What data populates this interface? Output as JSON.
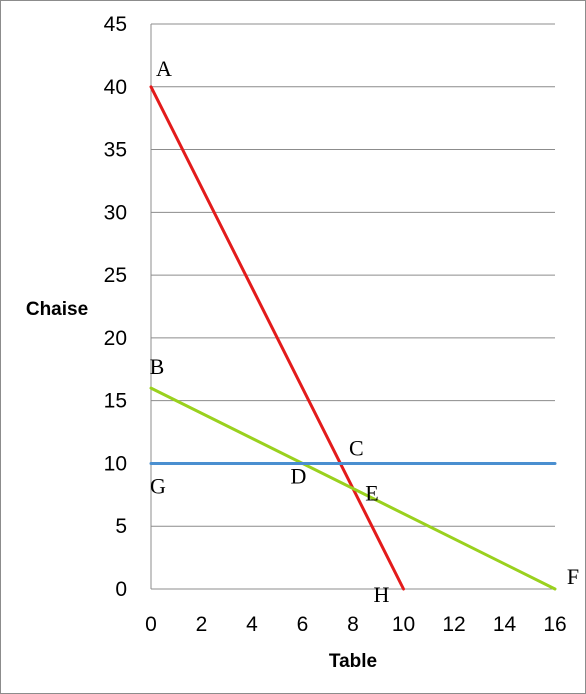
{
  "chart_data": {
    "type": "line",
    "title": "",
    "xlabel": "Table",
    "ylabel": "Chaise",
    "xlim": [
      0,
      16
    ],
    "ylim": [
      0,
      45
    ],
    "x_ticks": [
      "0",
      "2",
      "4",
      "6",
      "8",
      "10",
      "12",
      "14",
      "16"
    ],
    "y_ticks": [
      "0",
      "5",
      "10",
      "15",
      "20",
      "25",
      "30",
      "35",
      "40",
      "45"
    ],
    "grid": "horizontal",
    "legend": "none",
    "series": [
      {
        "color": "#e31b1b",
        "points": [
          [
            0,
            40
          ],
          [
            10,
            0
          ]
        ]
      },
      {
        "color": "#9ad11e",
        "points": [
          [
            0,
            16
          ],
          [
            16,
            0
          ]
        ]
      },
      {
        "color": "#4a8fd0",
        "points": [
          [
            0,
            10
          ],
          [
            16,
            10
          ]
        ]
      }
    ],
    "annotations": [
      {
        "text": "A",
        "x": 0,
        "y": 40
      },
      {
        "text": "B",
        "x": 0,
        "y": 16
      },
      {
        "text": "C",
        "x": 7.5,
        "y": 10
      },
      {
        "text": "D",
        "x": 6,
        "y": 10
      },
      {
        "text": "E",
        "x": 8,
        "y": 8
      },
      {
        "text": "F",
        "x": 16,
        "y": 0
      },
      {
        "text": "G",
        "x": 0,
        "y": 10
      },
      {
        "text": "H",
        "x": 10,
        "y": 0
      }
    ]
  }
}
